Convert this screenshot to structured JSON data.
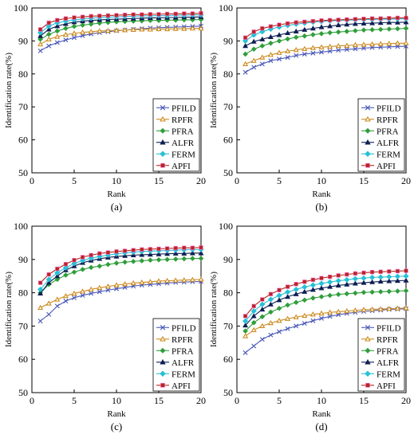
{
  "chart_data": [
    {
      "type": "line",
      "panel_label": "(a)",
      "xlabel": "Rank",
      "ylabel": "Identification rate(%)",
      "xlim": [
        0,
        20
      ],
      "ylim": [
        50,
        100
      ],
      "xticks": [
        0,
        5,
        10,
        15,
        20
      ],
      "yticks": [
        50,
        60,
        70,
        80,
        90,
        100
      ],
      "grid": false,
      "legend_position": "bottom-right",
      "x": [
        1,
        2,
        3,
        4,
        5,
        6,
        7,
        8,
        9,
        10,
        11,
        12,
        13,
        14,
        15,
        16,
        17,
        18,
        19,
        20
      ],
      "series": [
        {
          "name": "PFILD",
          "color": "#4a58b8",
          "marker": "x",
          "values": [
            87,
            88.5,
            89.5,
            90.3,
            91,
            91.6,
            92.1,
            92.5,
            92.8,
            93.1,
            93.3,
            93.5,
            93.7,
            93.9,
            94,
            94.1,
            94.2,
            94.3,
            94.4,
            94.5
          ]
        },
        {
          "name": "RPFR",
          "color": "#cc8a1e",
          "marker": "triangle",
          "values": [
            89,
            90.5,
            91.3,
            91.9,
            92.3,
            92.6,
            92.8,
            93,
            93.1,
            93.2,
            93.3,
            93.4,
            93.5,
            93.5,
            93.6,
            93.6,
            93.7,
            93.7,
            93.8,
            93.8
          ]
        },
        {
          "name": "PFRA",
          "color": "#2f9e3a",
          "marker": "diamond",
          "values": [
            90.5,
            92,
            93,
            93.8,
            94.4,
            94.8,
            95.1,
            95.4,
            95.6,
            95.8,
            95.9,
            96,
            96.1,
            96.2,
            96.2,
            96.3,
            96.3,
            96.4,
            96.4,
            96.5
          ]
        },
        {
          "name": "ALFR",
          "color": "#0e1f52",
          "marker": "triangle-filled",
          "values": [
            91.5,
            93.5,
            94.5,
            95.2,
            95.7,
            96,
            96.2,
            96.4,
            96.5,
            96.6,
            96.7,
            96.8,
            96.9,
            97,
            97,
            97.1,
            97.1,
            97.2,
            97.2,
            97.3
          ]
        },
        {
          "name": "FERM",
          "color": "#27c0d6",
          "marker": "diamond-filled",
          "values": [
            92.5,
            94.5,
            95.5,
            96,
            96.4,
            96.7,
            96.9,
            97.1,
            97.2,
            97.3,
            97.4,
            97.5,
            97.6,
            97.6,
            97.7,
            97.7,
            97.8,
            97.8,
            97.9,
            97.9
          ]
        },
        {
          "name": "APFI",
          "color": "#b5271f",
          "marker": "square",
          "values": [
            93.5,
            95.5,
            96.3,
            96.8,
            97.1,
            97.3,
            97.5,
            97.6,
            97.7,
            97.8,
            97.9,
            98,
            98,
            98.1,
            98.1,
            98.2,
            98.2,
            98.3,
            98.3,
            98.4
          ]
        }
      ]
    },
    {
      "type": "line",
      "panel_label": "(b)",
      "xlabel": "Rank",
      "ylabel": "Identification rate(%)",
      "xlim": [
        0,
        20
      ],
      "ylim": [
        50,
        100
      ],
      "xticks": [
        0,
        5,
        10,
        15,
        20
      ],
      "yticks": [
        50,
        60,
        70,
        80,
        90,
        100
      ],
      "grid": false,
      "legend_position": "bottom-right",
      "x": [
        1,
        2,
        3,
        4,
        5,
        6,
        7,
        8,
        9,
        10,
        11,
        12,
        13,
        14,
        15,
        16,
        17,
        18,
        19,
        20
      ],
      "series": [
        {
          "name": "PFILD",
          "color": "#4a58b8",
          "marker": "x",
          "values": [
            80.5,
            82,
            83,
            84,
            84.5,
            85,
            85.6,
            86,
            86.3,
            86.6,
            86.9,
            87.2,
            87.4,
            87.6,
            87.8,
            88,
            88.1,
            88.2,
            88.3,
            88.4
          ]
        },
        {
          "name": "RPFR",
          "color": "#cc8a1e",
          "marker": "triangle",
          "values": [
            83,
            84,
            85,
            85.8,
            86.4,
            86.9,
            87.3,
            87.6,
            87.9,
            88.1,
            88.3,
            88.5,
            88.6,
            88.8,
            88.9,
            89,
            89.1,
            89.2,
            89.3,
            89.3
          ]
        },
        {
          "name": "PFRA",
          "color": "#2f9e3a",
          "marker": "diamond",
          "values": [
            86,
            87.5,
            88.5,
            89.3,
            90,
            90.6,
            91.1,
            91.5,
            91.9,
            92.2,
            92.5,
            92.7,
            92.9,
            93.1,
            93.3,
            93.4,
            93.5,
            93.6,
            93.7,
            93.8
          ]
        },
        {
          "name": "ALFR",
          "color": "#0e1f52",
          "marker": "triangle-filled",
          "values": [
            88.5,
            89.8,
            90.5,
            91.2,
            91.8,
            92.4,
            92.9,
            93.4,
            93.8,
            94.2,
            94.5,
            94.8,
            95,
            95.2,
            95.3,
            95.4,
            95.5,
            95.6,
            95.6,
            95.7
          ]
        },
        {
          "name": "FERM",
          "color": "#27c0d6",
          "marker": "diamond-filled",
          "values": [
            90,
            91.8,
            92.8,
            93.6,
            94.2,
            94.7,
            95.1,
            95.4,
            95.7,
            95.9,
            96.1,
            96.2,
            96.3,
            96.4,
            96.5,
            96.5,
            96.6,
            96.6,
            96.7,
            96.7
          ]
        },
        {
          "name": "APFI",
          "color": "#b5271f",
          "marker": "square",
          "values": [
            91,
            92.8,
            93.8,
            94.4,
            94.9,
            95.3,
            95.6,
            95.8,
            96,
            96.2,
            96.3,
            96.4,
            96.5,
            96.6,
            96.7,
            96.8,
            96.8,
            96.9,
            97,
            97
          ]
        }
      ]
    },
    {
      "type": "line",
      "panel_label": "(c)",
      "xlabel": "Rank",
      "ylabel": "Identification rate(%)",
      "xlim": [
        0,
        20
      ],
      "ylim": [
        50,
        100
      ],
      "xticks": [
        0,
        5,
        10,
        15,
        20
      ],
      "yticks": [
        50,
        60,
        70,
        80,
        90,
        100
      ],
      "grid": false,
      "legend_position": "bottom-right",
      "x": [
        1,
        2,
        3,
        4,
        5,
        6,
        7,
        8,
        9,
        10,
        11,
        12,
        13,
        14,
        15,
        16,
        17,
        18,
        19,
        20
      ],
      "series": [
        {
          "name": "PFILD",
          "color": "#4a58b8",
          "marker": "x",
          "values": [
            71.5,
            73.5,
            76,
            77.5,
            78.5,
            79.2,
            79.8,
            80.3,
            80.8,
            81.2,
            81.6,
            82,
            82.3,
            82.5,
            82.7,
            82.9,
            83.1,
            83.2,
            83.3,
            83.4
          ]
        },
        {
          "name": "RPFR",
          "color": "#cc8a1e",
          "marker": "triangle",
          "values": [
            75.5,
            76.8,
            78,
            79,
            79.8,
            80.4,
            81,
            81.5,
            81.9,
            82.3,
            82.6,
            82.9,
            83.1,
            83.3,
            83.5,
            83.6,
            83.7,
            83.8,
            83.9,
            84
          ]
        },
        {
          "name": "PFRA",
          "color": "#2f9e3a",
          "marker": "diamond",
          "values": [
            80,
            82.5,
            84,
            85.3,
            86.2,
            87,
            87.6,
            88,
            88.5,
            88.9,
            89.2,
            89.4,
            89.6,
            89.8,
            89.9,
            90,
            90.1,
            90.2,
            90.3,
            90.3
          ]
        },
        {
          "name": "ALFR",
          "color": "#0e1f52",
          "marker": "triangle-filled",
          "values": [
            79.8,
            83,
            85,
            86.8,
            88,
            89,
            89.7,
            90.2,
            90.6,
            90.9,
            91.1,
            91.3,
            91.4,
            91.5,
            91.6,
            91.7,
            91.8,
            91.8,
            91.9,
            91.9
          ]
        },
        {
          "name": "FERM",
          "color": "#27c0d6",
          "marker": "diamond-filled",
          "values": [
            81,
            84,
            86,
            87.5,
            88.8,
            89.7,
            90.4,
            90.9,
            91.3,
            91.7,
            92,
            92.2,
            92.4,
            92.5,
            92.6,
            92.7,
            92.8,
            92.9,
            93,
            93
          ]
        },
        {
          "name": "APFI",
          "color": "#b5271f",
          "marker": "square",
          "values": [
            83,
            85.5,
            87.2,
            88.6,
            89.8,
            90.7,
            91.3,
            91.8,
            92.1,
            92.4,
            92.6,
            92.8,
            93,
            93.1,
            93.2,
            93.3,
            93.4,
            93.5,
            93.5,
            93.6
          ]
        }
      ]
    },
    {
      "type": "line",
      "panel_label": "(d)",
      "xlabel": "Rank",
      "ylabel": "Identification rate(%)",
      "xlim": [
        0,
        20
      ],
      "ylim": [
        50,
        100
      ],
      "xticks": [
        0,
        5,
        10,
        15,
        20
      ],
      "yticks": [
        50,
        60,
        70,
        80,
        90,
        100
      ],
      "grid": false,
      "legend_position": "bottom-right",
      "x": [
        1,
        2,
        3,
        4,
        5,
        6,
        7,
        8,
        9,
        10,
        11,
        12,
        13,
        14,
        15,
        16,
        17,
        18,
        19,
        20
      ],
      "series": [
        {
          "name": "PFILD",
          "color": "#4a58b8",
          "marker": "x",
          "values": [
            62,
            64,
            66,
            67.3,
            68.3,
            69.2,
            70,
            70.8,
            71.6,
            72.3,
            72.9,
            73.4,
            73.8,
            74.1,
            74.4,
            74.6,
            74.8,
            75,
            75.1,
            75.2
          ]
        },
        {
          "name": "RPFR",
          "color": "#cc8a1e",
          "marker": "triangle",
          "values": [
            67,
            68.8,
            70,
            70.9,
            71.6,
            72.2,
            72.7,
            73.1,
            73.5,
            73.8,
            74.1,
            74.3,
            74.5,
            74.7,
            74.9,
            75,
            75.1,
            75.2,
            75.3,
            75.4
          ]
        },
        {
          "name": "PFRA",
          "color": "#2f9e3a",
          "marker": "diamond",
          "values": [
            68.5,
            71,
            72.8,
            74.2,
            75.3,
            76.3,
            77.1,
            77.8,
            78.4,
            78.8,
            79.2,
            79.5,
            79.7,
            79.9,
            80.1,
            80.2,
            80.3,
            80.4,
            80.5,
            80.6
          ]
        },
        {
          "name": "ALFR",
          "color": "#0e1f52",
          "marker": "triangle-filled",
          "values": [
            70.2,
            73,
            75,
            76.5,
            77.8,
            78.8,
            79.6,
            80.3,
            80.9,
            81.4,
            81.8,
            82.2,
            82.5,
            82.8,
            83,
            83.2,
            83.4,
            83.5,
            83.6,
            83.7
          ]
        },
        {
          "name": "FERM",
          "color": "#27c0d6",
          "marker": "diamond-filled",
          "values": [
            71.5,
            74.5,
            76.5,
            78,
            79.2,
            80.2,
            81,
            81.7,
            82.3,
            82.8,
            83.2,
            83.6,
            83.9,
            84.2,
            84.4,
            84.6,
            84.7,
            84.8,
            84.9,
            85
          ]
        },
        {
          "name": "APFI",
          "color": "#b5271f",
          "marker": "square",
          "values": [
            73,
            76,
            78,
            79.6,
            80.8,
            81.8,
            82.6,
            83.3,
            83.9,
            84.4,
            84.8,
            85.2,
            85.5,
            85.8,
            86,
            86.2,
            86.3,
            86.4,
            86.5,
            86.6
          ]
        }
      ]
    }
  ]
}
